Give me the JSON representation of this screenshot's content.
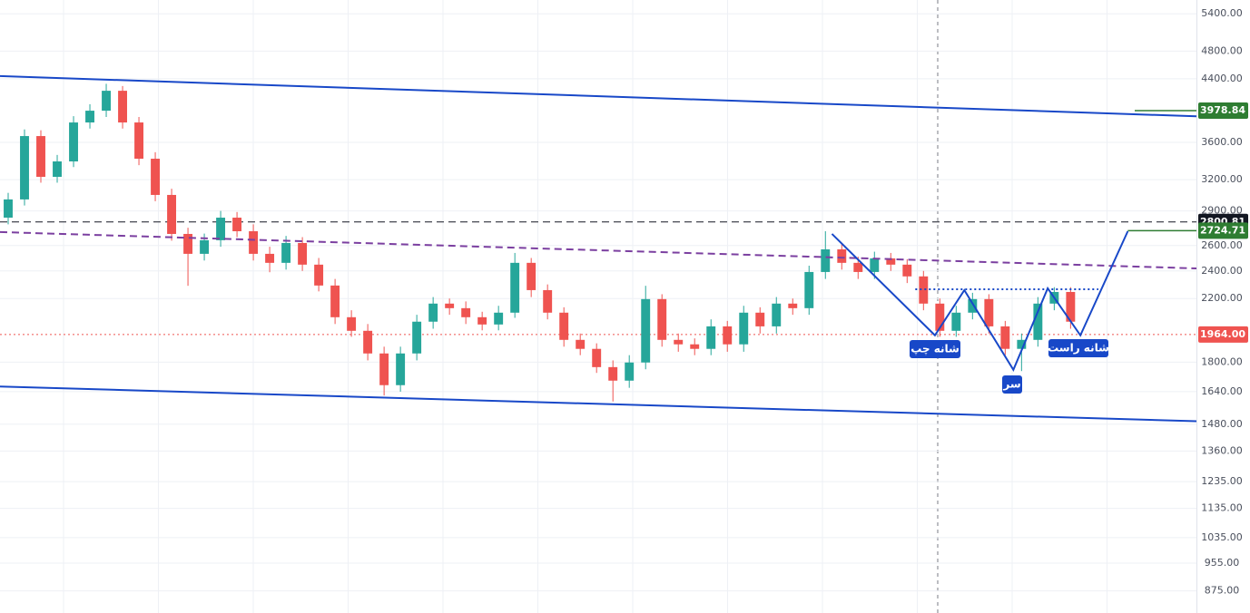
{
  "chart_data": {
    "type": "candlestick",
    "log_scale": true,
    "grid": true,
    "up_color": "#26a69a",
    "down_color": "#ef5350",
    "xlim": [
      -0.5,
      72.7
    ],
    "ylim": [
      816,
      5640
    ],
    "yticks": [
      {
        "value": 5400,
        "label": "5400.00"
      },
      {
        "value": 4800,
        "label": "4800.00"
      },
      {
        "value": 4400,
        "label": "4400.00"
      },
      {
        "value": 3600,
        "label": "3600.00"
      },
      {
        "value": 3200,
        "label": "3200.00"
      },
      {
        "value": 2900,
        "label": "2900.00"
      },
      {
        "value": 2600,
        "label": "2600.00"
      },
      {
        "value": 2400,
        "label": "2400.00"
      },
      {
        "value": 2200,
        "label": "2200.00"
      },
      {
        "value": 1800,
        "label": "1800.00"
      },
      {
        "value": 1640,
        "label": "1640.00"
      },
      {
        "value": 1480,
        "label": "1480.00"
      },
      {
        "value": 1360,
        "label": "1360.00"
      },
      {
        "value": 1235,
        "label": "1235.00"
      },
      {
        "value": 1135,
        "label": "1135.00"
      },
      {
        "value": 1035,
        "label": "1035.00"
      },
      {
        "value": 955,
        "label": "955.00"
      },
      {
        "value": 875,
        "label": "875.00"
      }
    ],
    "open": [
      2839,
      3007,
      3672,
      3229,
      3390,
      3833,
      3978,
      4236,
      3833,
      3419,
      3050,
      2697,
      2533,
      2644,
      2839,
      2720,
      2533,
      2462,
      2621,
      2448,
      2292,
      2074,
      1987,
      1850,
      1674,
      1850,
      2045,
      2165,
      2134,
      2074,
      2027,
      2104,
      2462,
      2259,
      2104,
      1931,
      1877,
      1772,
      1698,
      1798,
      2196,
      1931,
      1904,
      1877,
      2015,
      1904,
      2104,
      2015,
      2165,
      2134,
      2392,
      2569,
      2462,
      2392,
      2497,
      2448,
      2359,
      2165,
      1987,
      2104,
      2196,
      2015,
      1877,
      1931,
      2165,
      2246
    ],
    "high": [
      3070,
      3750,
      3740,
      3460,
      3910,
      4060,
      4330,
      4300,
      3900,
      3490,
      3110,
      2750,
      2700,
      2900,
      2890,
      2780,
      2590,
      2680,
      2670,
      2500,
      2340,
      2120,
      2030,
      1890,
      1890,
      2090,
      2210,
      2200,
      2180,
      2110,
      2150,
      2540,
      2500,
      2300,
      2140,
      1970,
      1910,
      1810,
      1840,
      2290,
      2230,
      1970,
      1940,
      2060,
      2050,
      2150,
      2140,
      2210,
      2200,
      2440,
      2720,
      2610,
      2510,
      2550,
      2540,
      2490,
      2400,
      2200,
      2150,
      2240,
      2230,
      2050,
      1970,
      2210,
      2280,
      2280
    ],
    "low": [
      2780,
      2950,
      3170,
      3170,
      3330,
      3760,
      3900,
      3760,
      3350,
      2990,
      2640,
      2290,
      2480,
      2590,
      2670,
      2480,
      2390,
      2410,
      2400,
      2250,
      2030,
      1950,
      1810,
      1620,
      1640,
      1810,
      2000,
      2090,
      2030,
      1990,
      1990,
      2070,
      2210,
      2060,
      1890,
      1840,
      1740,
      1590,
      1660,
      1760,
      1890,
      1860,
      1840,
      1840,
      1860,
      1860,
      1970,
      1970,
      2090,
      2090,
      2340,
      2410,
      2340,
      2340,
      2400,
      2310,
      2120,
      1950,
      1950,
      2060,
      1970,
      1840,
      1750,
      1890,
      2120,
      2000
    ],
    "close": [
      3007,
      3672,
      3229,
      3390,
      3833,
      3978,
      4236,
      3833,
      3419,
      3050,
      2697,
      2533,
      2644,
      2839,
      2720,
      2533,
      2462,
      2621,
      2448,
      2292,
      2074,
      1987,
      1850,
      1674,
      1850,
      2045,
      2165,
      2134,
      2074,
      2027,
      2104,
      2462,
      2259,
      2104,
      1931,
      1877,
      1772,
      1698,
      1798,
      2196,
      1931,
      1904,
      1877,
      2015,
      1904,
      2104,
      2015,
      2165,
      2134,
      2392,
      2569,
      2462,
      2392,
      2497,
      2448,
      2359,
      2165,
      1987,
      2104,
      2196,
      2015,
      1877,
      1931,
      2165,
      2246,
      2045
    ],
    "trendlines": [
      {
        "color": "#1848c8",
        "style": "solid",
        "x": [
          -0.5,
          72.7
        ],
        "y": [
          4437,
          3908
        ]
      },
      {
        "color": "#1848c8",
        "style": "solid",
        "x": [
          -0.5,
          72.7
        ],
        "y": [
          1667,
          1494
        ]
      },
      {
        "color": "#7b3fa0",
        "style": "dashed",
        "x": [
          -0.5,
          72.7
        ],
        "y": [
          2713,
          2419
        ]
      },
      {
        "color": "#1848c8",
        "style": "solid",
        "x": [
          50.4,
          56.7,
          58.5,
          61.5,
          63.6,
          65.6,
          68.5
        ],
        "y": [
          2697,
          1959,
          2259,
          1757,
          2272,
          1959,
          2720
        ]
      },
      {
        "color": "#1848c8",
        "style": "dotted",
        "x": [
          55.5,
          66.7
        ],
        "y": [
          2265,
          2265
        ]
      }
    ],
    "price_lines": [
      {
        "value": 3978.84,
        "color": "#2e7d32",
        "style": "solid"
      },
      {
        "value": 2800.81,
        "color": "#131722",
        "style": "dashed"
      },
      {
        "value": 2724.71,
        "color": "#2e7d32",
        "style": "solid"
      },
      {
        "value": {
          "value": 1964,
          "label": "1964.00"
        },
        "color": "#ef5350",
        "style": "dotted"
      }
    ],
    "annotations": [
      "شانه چپ",
      "سر",
      "شانه راست"
    ]
  }
}
